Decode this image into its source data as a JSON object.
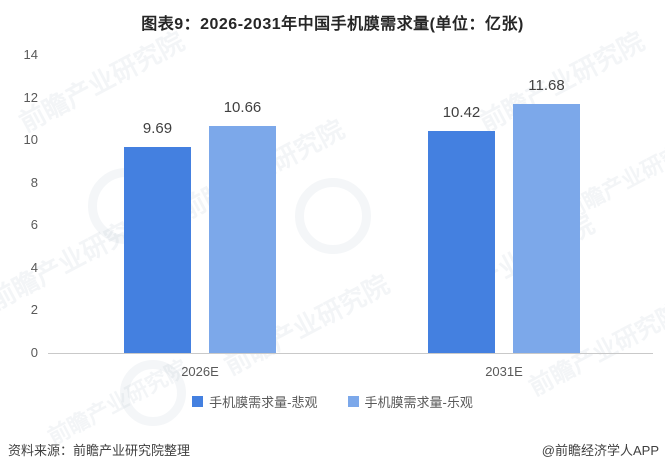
{
  "chart_data": {
    "type": "bar",
    "title": "图表9：2026-2031年中国手机膜需求量(单位：亿张)",
    "unit_label": "亿张",
    "categories": [
      "2026E",
      "2031E"
    ],
    "series": [
      {
        "name": "手机膜需求量-悲观",
        "color": "#4480E0",
        "values": [
          9.69,
          10.42
        ]
      },
      {
        "name": "手机膜需求量-乐观",
        "color": "#7CA8EA",
        "values": [
          10.66,
          11.68
        ]
      }
    ],
    "ylim": [
      0,
      14
    ],
    "yticks": [
      0,
      2,
      4,
      6,
      8,
      10,
      12,
      14
    ],
    "grid": false,
    "legend_position": "bottom",
    "value_label_decimals": 2
  },
  "footer": {
    "source_text": "资料来源：前瞻产业研究院整理",
    "credit_text": "@前瞻经济学人APP"
  },
  "watermark": {
    "text": "前瞻产业研究院"
  }
}
